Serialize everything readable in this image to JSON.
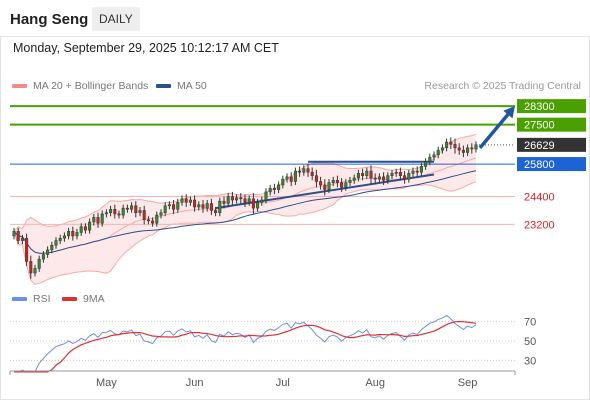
{
  "header": {
    "title": "Hang Seng",
    "timeframe": "DAILY"
  },
  "datetime": "Monday, September 29, 2025 10:12:17 AM CET",
  "credit": "Research © 2025 Trading Central",
  "colors": {
    "bollinger_line": "#f7a9a9",
    "bollinger_fill": "#fde3e3",
    "ma50": "#2c4f8e",
    "resistance": "#4aa000",
    "current_price_bg": "#333333",
    "pivot": "#1d63d6",
    "support": "#e02020",
    "support_line": "#f7b3b3",
    "rsi": "#6d8ee6",
    "rsi_ma": "#e03030",
    "candle_up": "#2f8a2f",
    "candle_down": "#d02020"
  },
  "chart_data": [
    {
      "type": "candlestick",
      "title": "Hang Seng",
      "legend": [
        {
          "name": "MA 20 + Bollinger Bands",
          "color": "#f48a8a"
        },
        {
          "name": "MA 50",
          "color": "#2c4f8e"
        }
      ],
      "x_ticks": [
        "May",
        "Jun",
        "Jul",
        "Aug",
        "Sep"
      ],
      "ylim": [
        20800,
        28650
      ],
      "levels": [
        {
          "value": 28300,
          "label": "28300",
          "kind": "resistance"
        },
        {
          "value": 27500,
          "label": "27500",
          "kind": "resistance"
        },
        {
          "value": 26629,
          "label": "26629",
          "kind": "current"
        },
        {
          "value": 25800,
          "label": "25800",
          "kind": "pivot"
        },
        {
          "value": 24400,
          "label": "24400",
          "kind": "support"
        },
        {
          "value": 23200,
          "label": "23200",
          "kind": "support"
        }
      ],
      "close": [
        22900,
        22500,
        22600,
        21600,
        21100,
        21300,
        21700,
        21900,
        22100,
        22300,
        22500,
        22600,
        22700,
        22900,
        22700,
        22850,
        23100,
        22950,
        23300,
        23500,
        23250,
        23650,
        23700,
        23850,
        23650,
        23600,
        23900,
        23850,
        24000,
        23700,
        23800,
        23400,
        23350,
        23250,
        23600,
        23700,
        24000,
        24050,
        23850,
        24150,
        24300,
        24150,
        24250,
        23950,
        24050,
        23900,
        24100,
        23800,
        23700,
        24200,
        24100,
        24400,
        24250,
        24350,
        24300,
        24150,
        24300,
        23900,
        24150,
        24250,
        24600,
        24750,
        24700,
        24900,
        25150,
        25250,
        25050,
        25500,
        25450,
        25600,
        25450,
        25300,
        25050,
        24900,
        24700,
        25000,
        25100,
        25000,
        24800,
        25000,
        25100,
        25200,
        25400,
        25300,
        25500,
        25200,
        25150,
        25250,
        25100,
        25300,
        25400,
        25450,
        25300,
        25150,
        25400,
        25500,
        25450,
        25700,
        25900,
        26100,
        26200,
        26400,
        26500,
        26750,
        26650,
        26500,
        26400,
        26300,
        26500,
        26450,
        26629
      ],
      "high_offsets": [
        150,
        150,
        150,
        200,
        250,
        150,
        150,
        150,
        150,
        150,
        150,
        150,
        150,
        150,
        200,
        150,
        150,
        150,
        150,
        150,
        200,
        150,
        150,
        150,
        200,
        150,
        150,
        150,
        150,
        200,
        150,
        200,
        150,
        150,
        150,
        150,
        150,
        150,
        200,
        150,
        150,
        200,
        150,
        200,
        150,
        200,
        150,
        200,
        150,
        150,
        200,
        150,
        200,
        150,
        200,
        200,
        150,
        250,
        150,
        150,
        150,
        150,
        200,
        150,
        150,
        150,
        200,
        150,
        200,
        150,
        200,
        200,
        250,
        200,
        250,
        150,
        150,
        200,
        200,
        150,
        150,
        150,
        150,
        200,
        150,
        250,
        200,
        150,
        200,
        150,
        150,
        150,
        200,
        200,
        150,
        150,
        200,
        150,
        150,
        150,
        150,
        150,
        150,
        150,
        200,
        250,
        200,
        200,
        150,
        200,
        150
      ],
      "rsi": {
        "name": "RSI",
        "ticks": [
          70,
          50,
          30
        ],
        "ylim": [
          20,
          80
        ]
      },
      "rsi_ma": {
        "name": "9MA"
      }
    }
  ]
}
